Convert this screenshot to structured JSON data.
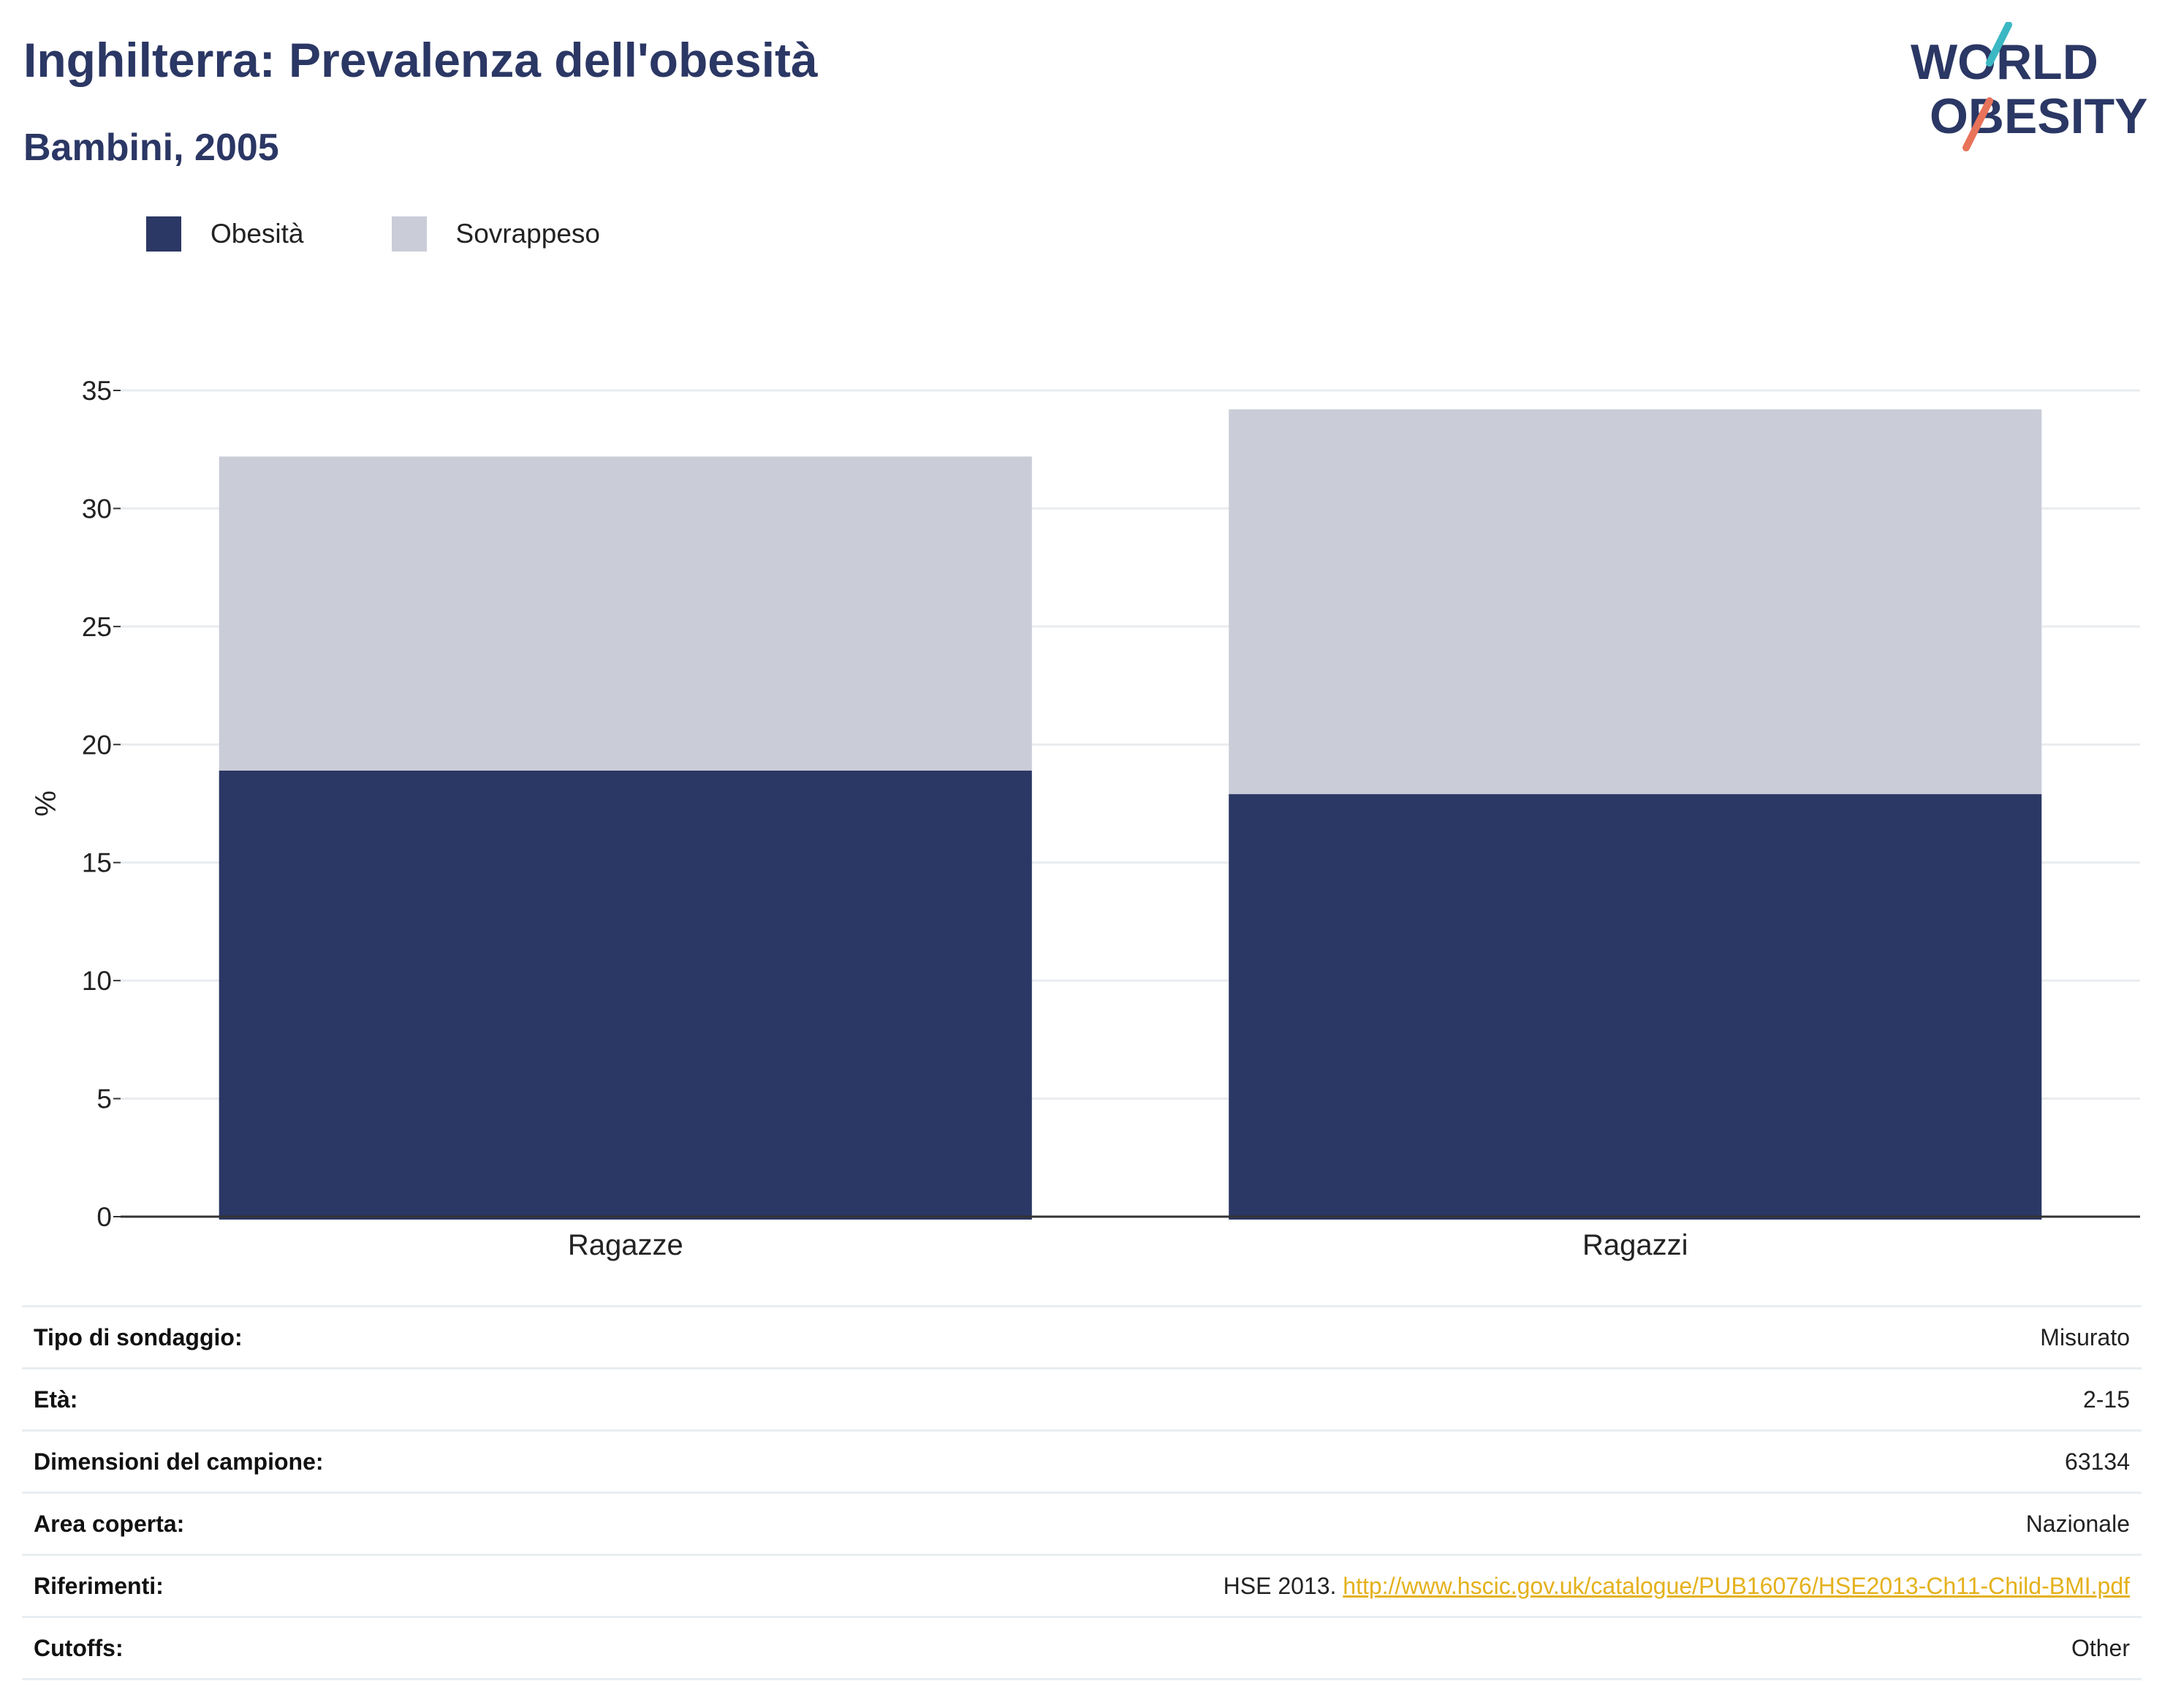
{
  "header": {
    "title": "Inghilterra: Prevalenza dell'obesità",
    "subtitle": "Bambini, 2005"
  },
  "logo": {
    "line1": "WORLD",
    "line2": "OBESITY",
    "colors": {
      "text": "#2b3764",
      "slash_top": "#3bb8c3",
      "slash_bottom": "#e8735a"
    }
  },
  "legend": [
    {
      "label": "Obesità",
      "color": "#2b3764"
    },
    {
      "label": "Sovrappeso",
      "color": "#cacdd8"
    }
  ],
  "chart_data": {
    "type": "bar",
    "stacked": true,
    "categories": [
      "Ragazze",
      "Ragazzi"
    ],
    "series": [
      {
        "name": "Obesità",
        "values": [
          18.9,
          17.9
        ],
        "color": "#2b3764"
      },
      {
        "name": "Sovrappeso",
        "values": [
          13.3,
          16.3
        ],
        "color": "#cacdd8"
      }
    ],
    "ylabel": "%",
    "ylim": [
      0,
      35
    ],
    "yticks": [
      0,
      5,
      10,
      15,
      20,
      25,
      30,
      35
    ],
    "grid": true,
    "legend_position": "top-left"
  },
  "info": [
    {
      "key": "Tipo di sondaggio:",
      "value": "Misurato"
    },
    {
      "key": "Età:",
      "value": "2-15"
    },
    {
      "key": "Dimensioni del campione:",
      "value": "63134"
    },
    {
      "key": "Area coperta:",
      "value": "Nazionale"
    },
    {
      "key": "Riferimenti:",
      "value": "HSE 2013. ",
      "link": "http://www.hscic.gov.uk/catalogue/PUB16076/HSE2013-Ch11-Child-BMI.pdf"
    },
    {
      "key": "Cutoffs:",
      "value": "Other"
    }
  ]
}
